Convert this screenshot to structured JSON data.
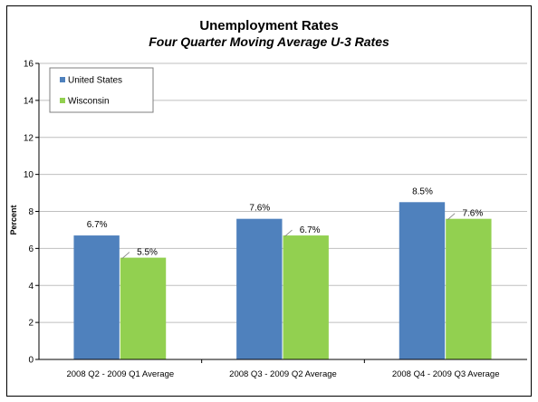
{
  "chart_data": {
    "type": "bar",
    "title": "Unemployment Rates",
    "subtitle": "Four Quarter Moving Average U-3 Rates",
    "xlabel": "",
    "ylabel": "Percent",
    "ylim": [
      0,
      16
    ],
    "yticks": [
      "0",
      "2",
      "4",
      "6",
      "8",
      "10",
      "12",
      "14",
      "16"
    ],
    "grid": true,
    "legend_position": "top-left",
    "categories": [
      "2008 Q2 - 2009 Q1 Average",
      "2008 Q3 - 2009 Q2 Average",
      "2008 Q4 - 2009 Q3 Average"
    ],
    "series": [
      {
        "name": "United States",
        "color": "#4F81BD",
        "values": [
          6.7,
          7.6,
          8.5
        ],
        "labels": [
          "6.7%",
          "7.6%",
          "8.5%"
        ]
      },
      {
        "name": "Wisconsin",
        "color": "#92D050",
        "values": [
          5.5,
          6.7,
          7.6
        ],
        "labels": [
          "5.5%",
          "6.7%",
          "7.6%"
        ]
      }
    ]
  }
}
